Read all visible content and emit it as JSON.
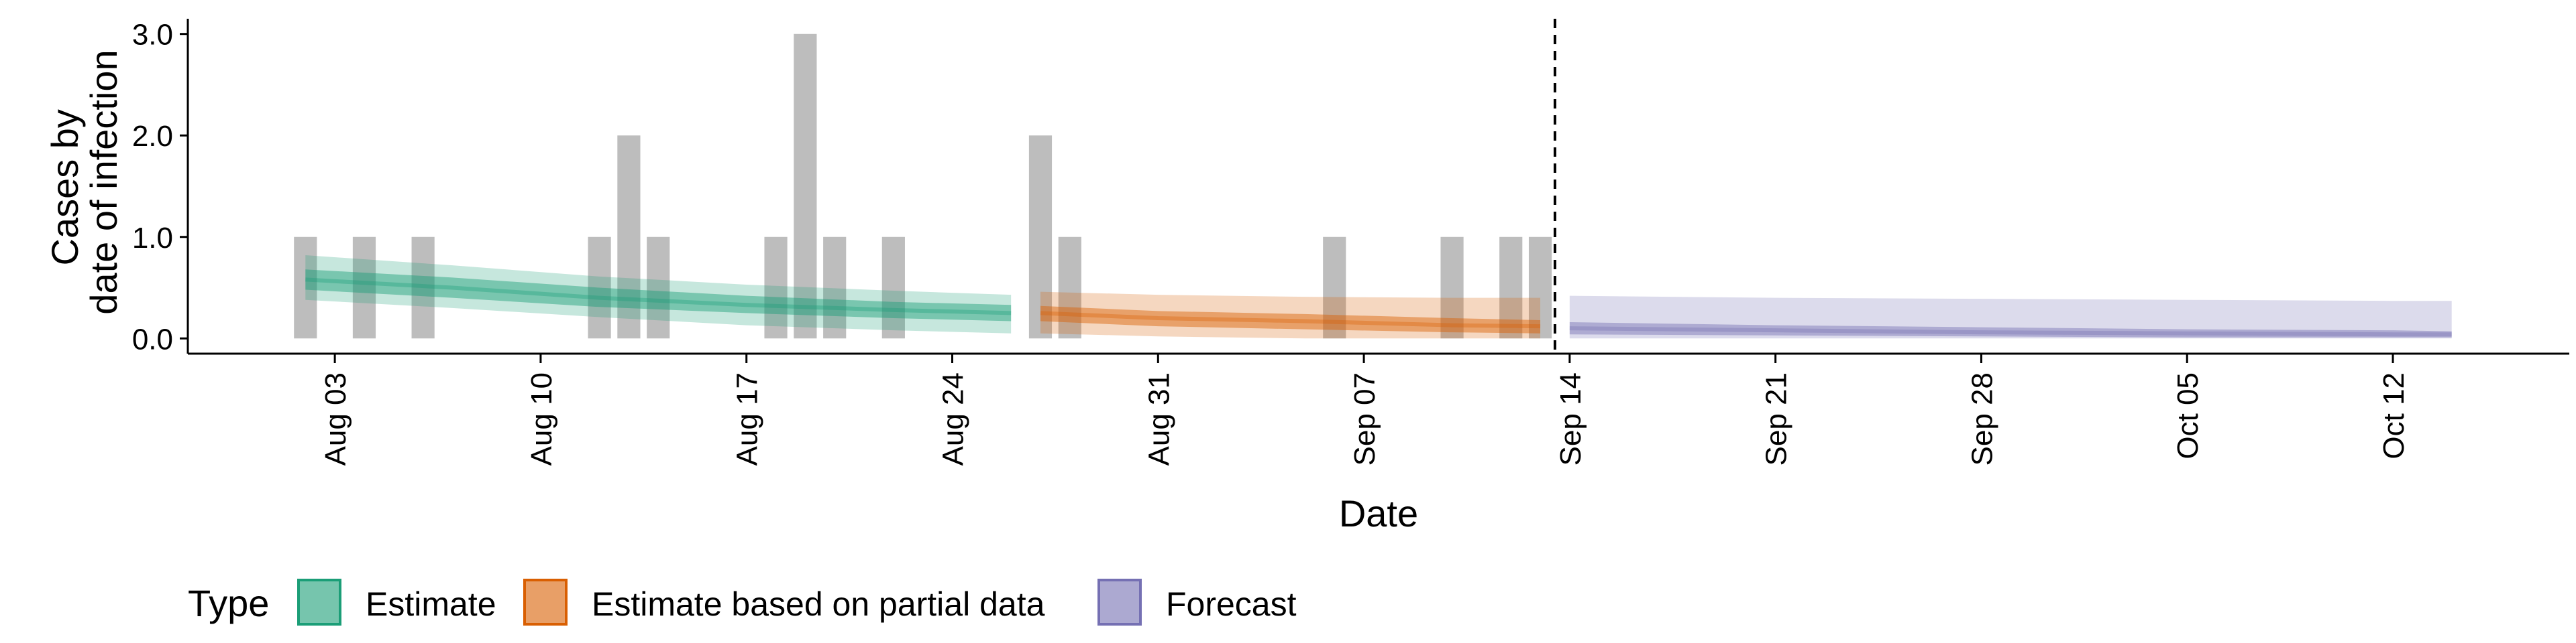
{
  "chart_data": {
    "type": "bar+line",
    "title": "",
    "xlabel": "Date",
    "ylabel": [
      "Cases by",
      "date of infection"
    ],
    "x_axis": {
      "type": "date",
      "range": [
        "2020-07-29",
        "2020-10-18"
      ],
      "ticks": [
        "2020-08-03",
        "2020-08-10",
        "2020-08-17",
        "2020-08-24",
        "2020-08-31",
        "2020-09-07",
        "2020-09-14",
        "2020-09-21",
        "2020-09-28",
        "2020-10-05",
        "2020-10-12"
      ],
      "tick_labels": [
        "Aug 03",
        "Aug 10",
        "Aug 17",
        "Aug 24",
        "Aug 31",
        "Sep 07",
        "Sep 14",
        "Sep 21",
        "Sep 28",
        "Oct 05",
        "Oct 12"
      ]
    },
    "y_axis": {
      "range": [
        -0.15,
        3.15
      ],
      "ticks": [
        0,
        1,
        2,
        3
      ],
      "tick_labels": [
        "0.0",
        "1.0",
        "2.0",
        "3.0"
      ]
    },
    "grid": false,
    "reported_cases": {
      "color": "#bdbdbd",
      "dates": [
        "2020-08-02",
        "2020-08-04",
        "2020-08-06",
        "2020-08-12",
        "2020-08-13",
        "2020-08-14",
        "2020-08-18",
        "2020-08-19",
        "2020-08-20",
        "2020-08-22",
        "2020-08-27",
        "2020-08-28",
        "2020-09-06",
        "2020-09-10",
        "2020-09-12",
        "2020-09-13"
      ],
      "values": [
        1,
        1,
        1,
        1,
        2,
        1,
        1,
        3,
        1,
        1,
        2,
        1,
        1,
        1,
        1,
        1
      ]
    },
    "series": [
      {
        "name": "Estimate",
        "color": "#1b9e77",
        "dates": [
          "2020-08-02",
          "2020-08-07",
          "2020-08-12",
          "2020-08-17",
          "2020-08-22",
          "2020-08-26"
        ],
        "median": [
          0.58,
          0.5,
          0.4,
          0.33,
          0.28,
          0.25
        ],
        "inner": [
          [
            0.48,
            0.68
          ],
          [
            0.4,
            0.6
          ],
          [
            0.31,
            0.5
          ],
          [
            0.25,
            0.42
          ],
          [
            0.2,
            0.36
          ],
          [
            0.17,
            0.33
          ]
        ],
        "outer": [
          [
            0.38,
            0.82
          ],
          [
            0.3,
            0.72
          ],
          [
            0.21,
            0.61
          ],
          [
            0.13,
            0.53
          ],
          [
            0.08,
            0.47
          ],
          [
            0.05,
            0.43
          ]
        ]
      },
      {
        "name": "Estimate based on partial data",
        "color": "#d95f02",
        "dates": [
          "2020-08-27",
          "2020-08-31",
          "2020-09-05",
          "2020-09-10",
          "2020-09-13"
        ],
        "median": [
          0.25,
          0.2,
          0.17,
          0.13,
          0.12
        ],
        "inner": [
          [
            0.17,
            0.32
          ],
          [
            0.12,
            0.27
          ],
          [
            0.09,
            0.24
          ],
          [
            0.06,
            0.2
          ],
          [
            0.05,
            0.18
          ]
        ],
        "outer": [
          [
            0.05,
            0.46
          ],
          [
            0.02,
            0.43
          ],
          [
            0.0,
            0.41
          ],
          [
            0.0,
            0.4
          ],
          [
            0.0,
            0.4
          ]
        ]
      },
      {
        "name": "Forecast",
        "color": "#7570b3",
        "dates": [
          "2020-09-14",
          "2020-09-21",
          "2020-09-28",
          "2020-10-05",
          "2020-10-12",
          "2020-10-14"
        ],
        "median": [
          0.1,
          0.08,
          0.06,
          0.05,
          0.04,
          0.04
        ],
        "inner": [
          [
            0.04,
            0.16
          ],
          [
            0.03,
            0.13
          ],
          [
            0.02,
            0.11
          ],
          [
            0.01,
            0.09
          ],
          [
            0.01,
            0.08
          ],
          [
            0.01,
            0.07
          ]
        ],
        "outer": [
          [
            0.0,
            0.42
          ],
          [
            0.0,
            0.4
          ],
          [
            0.0,
            0.39
          ],
          [
            0.0,
            0.38
          ],
          [
            0.0,
            0.37
          ],
          [
            0.0,
            0.37
          ]
        ]
      }
    ],
    "vline": {
      "date": "2020-09-13",
      "style": "dashed"
    },
    "legend": {
      "title": "Type",
      "placement": "bottom-left",
      "items": [
        "Estimate",
        "Estimate based on partial data",
        "Forecast"
      ]
    }
  }
}
